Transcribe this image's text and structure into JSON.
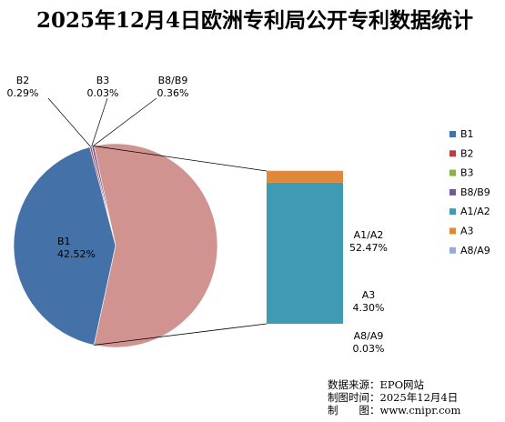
{
  "chart_data": {
    "type": "pie",
    "title": "2025年12月4日欧洲专利局公开专利数据统计",
    "slices": [
      {
        "name": "B1",
        "value": 42.52,
        "label": "42.52%",
        "color": "#4472A8"
      },
      {
        "name": "B2",
        "value": 0.29,
        "label": "0.29%",
        "color": "#B5413E"
      },
      {
        "name": "B3",
        "value": 0.03,
        "label": "0.03%",
        "color": "#8CB14A"
      },
      {
        "name": "B8/B9",
        "value": 0.36,
        "label": "0.36%",
        "color": "#715A94"
      },
      {
        "name": "A1/A2",
        "value": 52.47,
        "label": "52.47%",
        "color": "#3F9BB1"
      },
      {
        "name": "A3",
        "value": 4.3,
        "label": "4.30%",
        "color": "#E0873A"
      },
      {
        "name": "A8/A9",
        "value": 0.03,
        "label": "0.03%",
        "color": "#97ACD3"
      }
    ],
    "pie_of_pie": {
      "grouped_slice_color": "#D19390",
      "stack_names": [
        "A1/A2",
        "A3",
        "A8/A9"
      ]
    },
    "legend": {
      "position": "right"
    }
  },
  "source": {
    "line1": "数据来源：EPO网站",
    "line2": "制图时间：2025年12月4日",
    "line3": "制　　图：www.cnipr.com"
  }
}
